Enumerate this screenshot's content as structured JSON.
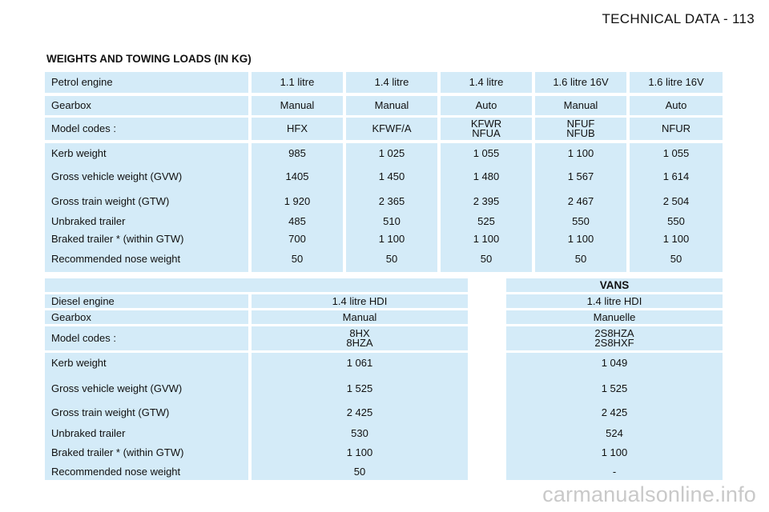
{
  "header": {
    "title": "TECHNICAL DATA - 113"
  },
  "section_title": "WEIGHTS AND TOWING LOADS (IN KG)",
  "petrol_table": {
    "engine_row": {
      "label": "Petrol engine",
      "values": [
        "1.1 litre",
        "1.4 litre",
        "1.4 litre",
        "1.6 litre 16V",
        "1.6 litre 16V"
      ]
    },
    "gearbox_row": {
      "label": "Gearbox",
      "values": [
        "Manual",
        "Manual",
        "Auto",
        "Manual",
        "Auto"
      ]
    },
    "model_row": {
      "label": "Model codes :",
      "values": [
        "HFX",
        "KFWF/A",
        "KFWR\nNFUA",
        "NFUF\nNFUB",
        "NFUR"
      ]
    },
    "weights": {
      "labels": [
        "Kerb weight",
        "Gross vehicle weight (GVW)",
        "Gross train weight (GTW)",
        "Unbraked trailer",
        "Braked trailer * (within GTW)",
        "Recommended nose weight"
      ],
      "columns": [
        [
          "985",
          "1405",
          "1 920",
          "485",
          "700",
          "50"
        ],
        [
          "1 025",
          "1 450",
          "2 365",
          "510",
          "1 100",
          "50"
        ],
        [
          "1 055",
          "1 480",
          "2 395",
          "525",
          "1 100",
          "50"
        ],
        [
          "1 100",
          "1 567",
          "2 467",
          "550",
          "1 100",
          "50"
        ],
        [
          "1 055",
          "1 614",
          "2 504",
          "550",
          "1 100",
          "50"
        ]
      ]
    }
  },
  "diesel_table": {
    "vans_heading": "VANS",
    "rows": [
      {
        "label": "Diesel engine",
        "car": "1.4 litre HDI",
        "van": "1.4 litre HDI"
      },
      {
        "label": "Gearbox",
        "car": "Manual",
        "van": "Manuelle"
      },
      {
        "label": "Model codes :",
        "car": "8HX\n8HZA",
        "van": "2S8HZA\n2S8HXF"
      }
    ],
    "weights": {
      "labels": [
        "Kerb weight",
        "Gross vehicle weight (GVW)",
        "Gross train weight (GTW)",
        "Unbraked trailer",
        "Braked trailer * (within GTW)",
        "Recommended nose weight"
      ],
      "car": [
        "1 061",
        "1 525",
        "2 425",
        "530",
        "1 100",
        "50"
      ],
      "van": [
        "1 049",
        "1 525",
        "2 425",
        "524",
        "1 100",
        "-"
      ]
    }
  },
  "watermark": "carmanualsonline.info"
}
